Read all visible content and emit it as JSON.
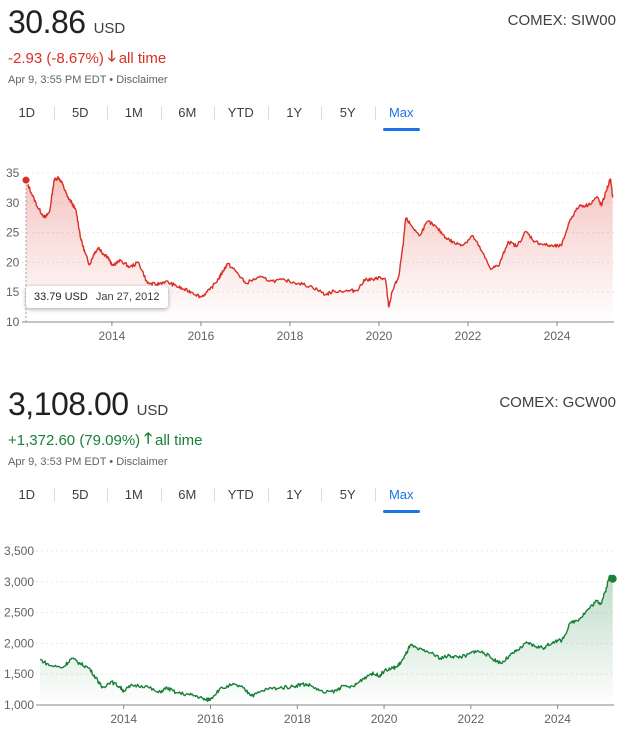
{
  "panels": [
    {
      "price": "30.86",
      "currency": "USD",
      "ticker": "COMEX: SIW00",
      "change": "-2.93 (-8.67%)",
      "change_arrow": "🡓",
      "change_period": "all time",
      "timestamp": "Apr 9, 3:55 PM EDT",
      "disclaimer": "Disclaimer",
      "tabs": [
        "1D",
        "5D",
        "1M",
        "6M",
        "YTD",
        "1Y",
        "5Y",
        "Max"
      ],
      "active_tab": "Max",
      "tooltip": {
        "value": "33.79 USD",
        "date": "Jan 27, 2012"
      }
    },
    {
      "price": "3,108.00",
      "currency": "USD",
      "ticker": "COMEX: GCW00",
      "change": "+1,372.60 (79.09%)",
      "change_arrow": "🡑",
      "change_period": "all time",
      "timestamp": "Apr 9, 3:53 PM EDT",
      "disclaimer": "Disclaimer",
      "tabs": [
        "1D",
        "5D",
        "1M",
        "6M",
        "YTD",
        "1Y",
        "5Y",
        "Max"
      ],
      "active_tab": "Max"
    }
  ],
  "colors": {
    "down": "#d93025",
    "up": "#188038",
    "accent": "#1a73e8"
  },
  "chart_data": [
    {
      "type": "area",
      "series": [
        {
          "color": "#d93025",
          "x": [
            2012.07,
            2012.2,
            2012.35,
            2012.5,
            2012.6,
            2012.7,
            2012.8,
            2012.9,
            2013.0,
            2013.1,
            2013.2,
            2013.3,
            2013.4,
            2013.5,
            2013.6,
            2013.7,
            2013.8,
            2013.9,
            2014.0,
            2014.2,
            2014.4,
            2014.6,
            2014.8,
            2015.0,
            2015.2,
            2015.4,
            2015.6,
            2015.8,
            2016.0,
            2016.2,
            2016.4,
            2016.5,
            2016.6,
            2016.8,
            2017.0,
            2017.3,
            2017.6,
            2017.9,
            2018.2,
            2018.5,
            2018.8,
            2019.0,
            2019.3,
            2019.5,
            2019.7,
            2019.9,
            2020.0,
            2020.15,
            2020.22,
            2020.3,
            2020.45,
            2020.55,
            2020.6,
            2020.7,
            2020.9,
            2021.1,
            2021.3,
            2021.5,
            2021.7,
            2021.9,
            2022.1,
            2022.3,
            2022.5,
            2022.7,
            2022.9,
            2023.1,
            2023.3,
            2023.5,
            2023.7,
            2023.9,
            2024.1,
            2024.3,
            2024.5,
            2024.7,
            2024.9,
            2025.0,
            2025.1,
            2025.2,
            2025.25
          ],
          "y": [
            33.8,
            31.5,
            29.0,
            27.5,
            28.5,
            33.8,
            34.3,
            33.0,
            31.0,
            30.0,
            28.5,
            24.0,
            21.5,
            19.6,
            21.5,
            22.5,
            21.5,
            21.0,
            19.5,
            20.3,
            19.2,
            20.0,
            16.5,
            16.3,
            16.8,
            16.2,
            15.5,
            15.0,
            14.2,
            15.4,
            17.3,
            18.6,
            19.8,
            18.4,
            16.5,
            17.5,
            16.9,
            17.0,
            16.5,
            15.9,
            14.6,
            15.2,
            15.2,
            15.3,
            17.2,
            17.1,
            17.5,
            17.0,
            12.5,
            15.2,
            17.8,
            23.5,
            27.4,
            26.5,
            24.5,
            26.9,
            25.8,
            24.2,
            23.2,
            23.0,
            24.5,
            22.0,
            19.0,
            19.5,
            23.5,
            22.7,
            25.2,
            23.5,
            23.0,
            22.7,
            22.8,
            27.3,
            29.5,
            29.6,
            31.0,
            29.5,
            31.9,
            34.0,
            30.9
          ]
        }
      ],
      "xlim": [
        2012.07,
        2025.28
      ],
      "ylim": [
        10,
        35
      ],
      "yticks": [
        10,
        15,
        20,
        25,
        30,
        35
      ],
      "xticks": [
        2014,
        2016,
        2018,
        2020,
        2022,
        2024
      ],
      "xtick_labels": [
        "2014",
        "2016",
        "2018",
        "2020",
        "2022",
        "2024"
      ],
      "grid": true
    },
    {
      "type": "area",
      "series": [
        {
          "color": "#188038",
          "x": [
            2012.07,
            2012.3,
            2012.6,
            2012.8,
            2013.0,
            2013.2,
            2013.4,
            2013.5,
            2013.7,
            2013.9,
            2014.0,
            2014.2,
            2014.5,
            2014.8,
            2015.0,
            2015.2,
            2015.5,
            2015.7,
            2015.9,
            2016.0,
            2016.2,
            2016.5,
            2016.7,
            2016.9,
            2017.0,
            2017.3,
            2017.6,
            2017.9,
            2018.1,
            2018.3,
            2018.6,
            2018.9,
            2019.0,
            2019.3,
            2019.5,
            2019.7,
            2019.9,
            2020.0,
            2020.2,
            2020.3,
            2020.45,
            2020.6,
            2020.8,
            2021.0,
            2021.3,
            2021.5,
            2021.7,
            2021.9,
            2022.1,
            2022.3,
            2022.5,
            2022.7,
            2022.9,
            2023.1,
            2023.3,
            2023.5,
            2023.7,
            2023.9,
            2024.1,
            2024.3,
            2024.5,
            2024.7,
            2024.9,
            2025.0,
            2025.1,
            2025.2,
            2025.27
          ],
          "y": [
            1740,
            1640,
            1610,
            1760,
            1670,
            1600,
            1400,
            1280,
            1380,
            1300,
            1230,
            1320,
            1310,
            1200,
            1280,
            1200,
            1170,
            1140,
            1080,
            1100,
            1250,
            1330,
            1300,
            1180,
            1160,
            1260,
            1280,
            1300,
            1340,
            1320,
            1200,
            1230,
            1290,
            1300,
            1420,
            1510,
            1480,
            1550,
            1600,
            1620,
            1750,
            1970,
            1900,
            1870,
            1760,
            1800,
            1780,
            1800,
            1880,
            1850,
            1750,
            1680,
            1800,
            1900,
            2010,
            1950,
            1930,
            2030,
            2050,
            2330,
            2400,
            2550,
            2690,
            2650,
            2840,
            3100,
            3050
          ]
        }
      ],
      "xlim": [
        2012.07,
        2025.3
      ],
      "ylim": [
        1000,
        3500
      ],
      "yticks": [
        1000,
        1500,
        2000,
        2500,
        3000,
        3500
      ],
      "ytick_labels": [
        "1,000",
        "1,500",
        "2,000",
        "2,500",
        "3,000",
        "3,500"
      ],
      "xticks": [
        2014,
        2016,
        2018,
        2020,
        2022,
        2024
      ],
      "xtick_labels": [
        "2014",
        "2016",
        "2018",
        "2020",
        "2022",
        "2024"
      ],
      "grid": true
    }
  ]
}
